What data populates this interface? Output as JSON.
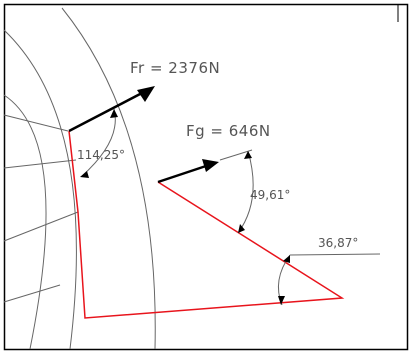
{
  "colors": {
    "frame": "#000000",
    "arc": "#666666",
    "red": "#e8141c",
    "black": "#000000",
    "text": "#555555"
  },
  "labels": {
    "fr": "Fr = 2376N",
    "fg": "Fg = 646N",
    "angle_a": "114,25°",
    "angle_b": "49,61°",
    "angle_c": "36,87°"
  }
}
